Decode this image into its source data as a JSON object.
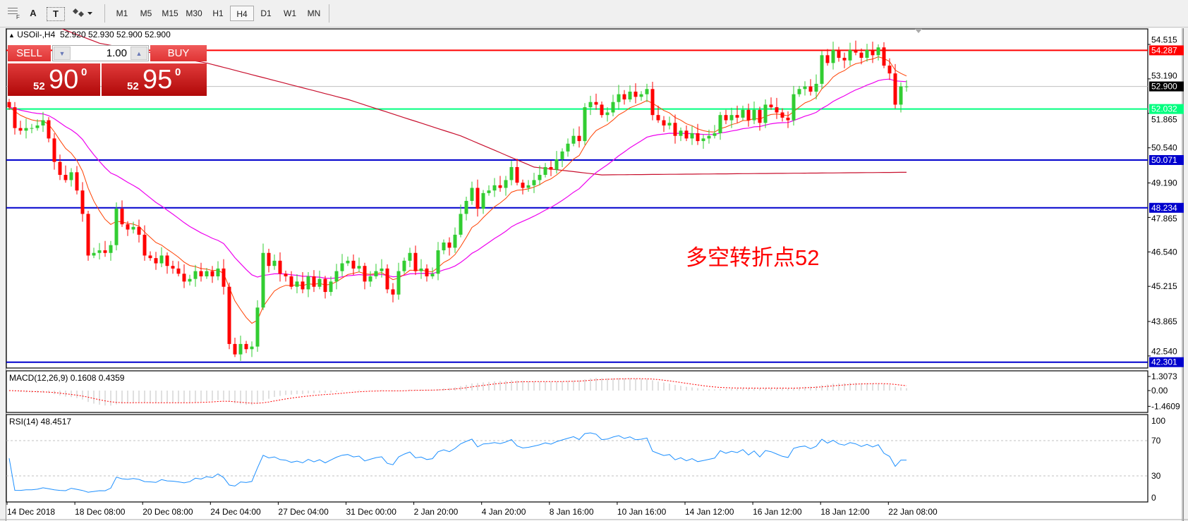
{
  "toolbar": {
    "tools": [
      {
        "icon": "grid-fonts-icon",
        "label": ""
      },
      {
        "icon": "text-icon",
        "label": "A"
      },
      {
        "icon": "text-label-icon",
        "label": "T"
      },
      {
        "icon": "arrows-dropdown-icon",
        "label": ""
      }
    ],
    "timeframes": [
      "M1",
      "M5",
      "M15",
      "M30",
      "H1",
      "H4",
      "D1",
      "W1",
      "MN"
    ],
    "active_timeframe": "H4"
  },
  "header": {
    "symbol": "USOil-,H4",
    "ohlc": "52.920 52.930 52.900 52.900"
  },
  "trade_panel": {
    "sell_label": "SELL",
    "buy_label": "BUY",
    "lot": "1.00",
    "sell": {
      "big_figure": "52",
      "pips": "90",
      "fraction": "0"
    },
    "buy": {
      "big_figure": "52",
      "pips": "95",
      "fraction": "0"
    }
  },
  "annotation": "多空转折点52",
  "colors": {
    "bull": "#32cd32",
    "bear": "#ff0000",
    "fast_ma": "#ff4000",
    "mid_ma": "#ee00ee",
    "slow_ma": "#c8102e",
    "resistance": "#ff0000",
    "pivot": "#00ff7f",
    "support": "#0000cd",
    "bid": "#c0c0c0",
    "rsi": "#1e90ff",
    "macd_hist": "#c0c0c0",
    "macd_signal": "#ff0000"
  },
  "chart_data": {
    "type": "candlestick",
    "symbol": "USOil-",
    "timeframe": "H4",
    "ylim": [
      42.0,
      54.9
    ],
    "price_ticks": [
      "54.515",
      "53.190",
      "51.865",
      "50.540",
      "49.190",
      "47.865",
      "46.540",
      "45.215",
      "43.865",
      "42.540"
    ],
    "time_ticks": [
      "14 Dec 2018",
      "18 Dec 08:00",
      "20 Dec 08:00",
      "24 Dec 04:00",
      "27 Dec 04:00",
      "31 Dec 00:00",
      "2 Jan 20:00",
      "4 Jan 20:00",
      "8 Jan 16:00",
      "10 Jan 16:00",
      "14 Jan 12:00",
      "16 Jan 12:00",
      "18 Jan 12:00",
      "22 Jan 08:00"
    ],
    "first_open": 52.3,
    "close": [
      52.1,
      51.3,
      51.2,
      51.3,
      51.3,
      51.4,
      51.6,
      50.9,
      50.0,
      49.5,
      49.3,
      49.6,
      48.9,
      48.0,
      46.4,
      46.5,
      46.6,
      46.5,
      46.8,
      48.2,
      47.6,
      47.4,
      47.5,
      47.2,
      46.4,
      46.3,
      46.1,
      46.4,
      46.0,
      45.9,
      45.7,
      45.4,
      45.5,
      45.8,
      45.6,
      45.8,
      45.6,
      45.9,
      45.2,
      43.0,
      42.6,
      43.0,
      42.8,
      42.9,
      44.4,
      46.5,
      46.0,
      46.2,
      45.7,
      45.6,
      45.2,
      45.4,
      45.1,
      45.6,
      45.2,
      45.5,
      45.0,
      45.4,
      45.8,
      46.1,
      46.2,
      45.9,
      46.0,
      45.4,
      45.6,
      45.8,
      45.9,
      45.1,
      44.9,
      45.8,
      46.2,
      46.5,
      45.8,
      45.9,
      45.6,
      45.7,
      46.6,
      46.9,
      46.7,
      47.2,
      48.0,
      48.5,
      49.0,
      48.2,
      48.8,
      48.9,
      49.1,
      49.0,
      49.3,
      49.8,
      49.2,
      49.0,
      49.1,
      49.3,
      49.5,
      49.8,
      49.7,
      50.1,
      50.4,
      50.7,
      51.0,
      50.8,
      52.1,
      52.3,
      52.2,
      51.8,
      51.9,
      52.3,
      52.6,
      52.4,
      52.7,
      52.5,
      52.6,
      52.8,
      51.8,
      51.6,
      51.4,
      51.5,
      51.0,
      51.2,
      50.9,
      51.1,
      50.8,
      50.9,
      51.0,
      51.1,
      51.8,
      51.6,
      51.8,
      51.7,
      52.0,
      51.6,
      52.0,
      51.5,
      52.2,
      52.1,
      51.9,
      51.7,
      51.6,
      52.6,
      52.8,
      52.9,
      52.7,
      53.0,
      54.1,
      53.8,
      54.3,
      54.0,
      53.9,
      54.3,
      54.2,
      54.0,
      54.3,
      54.1,
      54.4,
      53.7,
      53.4,
      52.2,
      52.9,
      52.9
    ],
    "slow_ma_points": [
      [
        0,
        55.9
      ],
      [
        16,
        54.56
      ],
      [
        35,
        53.8
      ],
      [
        60,
        52.4
      ],
      [
        80,
        51.0
      ],
      [
        93,
        49.8
      ],
      [
        105,
        49.5
      ],
      [
        159,
        49.6
      ]
    ],
    "horizontal_lines": [
      {
        "price": "54.287",
        "role": "resistance"
      },
      {
        "price": "52.900",
        "role": "bid"
      },
      {
        "price": "52.032",
        "role": "pivot"
      },
      {
        "price": "50.071",
        "role": "support"
      },
      {
        "price": "48.234",
        "role": "support"
      },
      {
        "price": "42.301",
        "role": "support"
      }
    ],
    "macd": {
      "label": "MACD(12,26,9) 0.1608 0.4359",
      "ticks": [
        "1.3073",
        "0.00",
        "-1.4609"
      ]
    },
    "rsi": {
      "label": "RSI(14) 48.4517",
      "ticks": [
        "100",
        "70",
        "30",
        "0"
      ],
      "levels": [
        70,
        30
      ]
    }
  }
}
